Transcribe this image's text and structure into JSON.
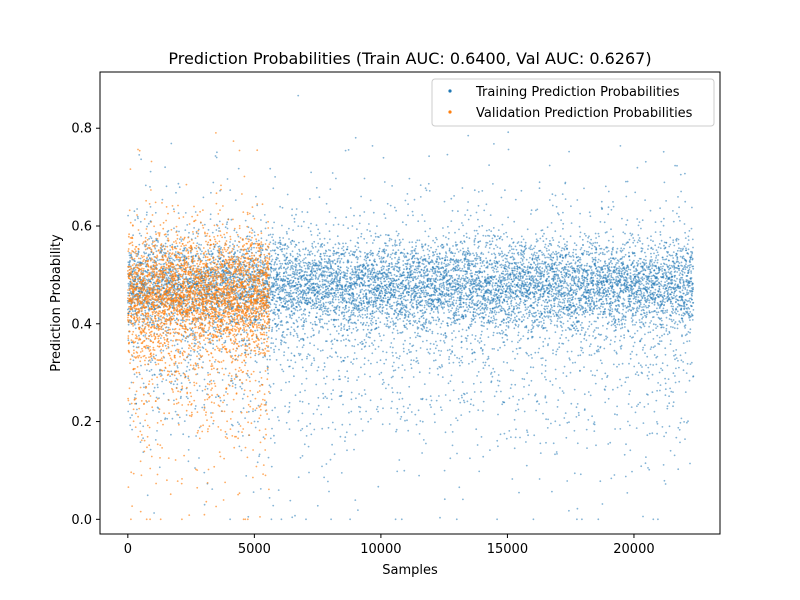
{
  "chart_data": {
    "type": "scatter",
    "title": "Prediction Probabilities (Train AUC: 0.6400, Val AUC: 0.6267)",
    "xlabel": "Samples",
    "ylabel": "Prediction Probability",
    "xlim": [
      -1100,
      23400
    ],
    "ylim": [
      -0.03,
      0.915
    ],
    "x_ticks": [
      0,
      5000,
      10000,
      15000,
      20000
    ],
    "x_tick_labels": [
      "0",
      "5000",
      "10000",
      "15000",
      "20000"
    ],
    "y_ticks": [
      0.0,
      0.2,
      0.4,
      0.6,
      0.8
    ],
    "y_tick_labels": [
      "0.0",
      "0.2",
      "0.4",
      "0.6",
      "0.8"
    ],
    "grid": false,
    "legend_position": "top-right",
    "series": [
      {
        "name": "Training Prediction Probabilities",
        "color": "#1f77b4",
        "x_range": [
          0,
          22350
        ],
        "n_points": 22350,
        "distribution": "dense band centered near 0.48 (0.38–0.55), spread down to 0.0 and up to about 0.88"
      },
      {
        "name": "Validation Prediction Probabilities",
        "color": "#ff7f0e",
        "x_range": [
          0,
          5600
        ],
        "n_points": 5600,
        "distribution": "dense band centered near 0.46 (0.35–0.55), spread down to 0.0 and up to about 0.83"
      }
    ]
  }
}
